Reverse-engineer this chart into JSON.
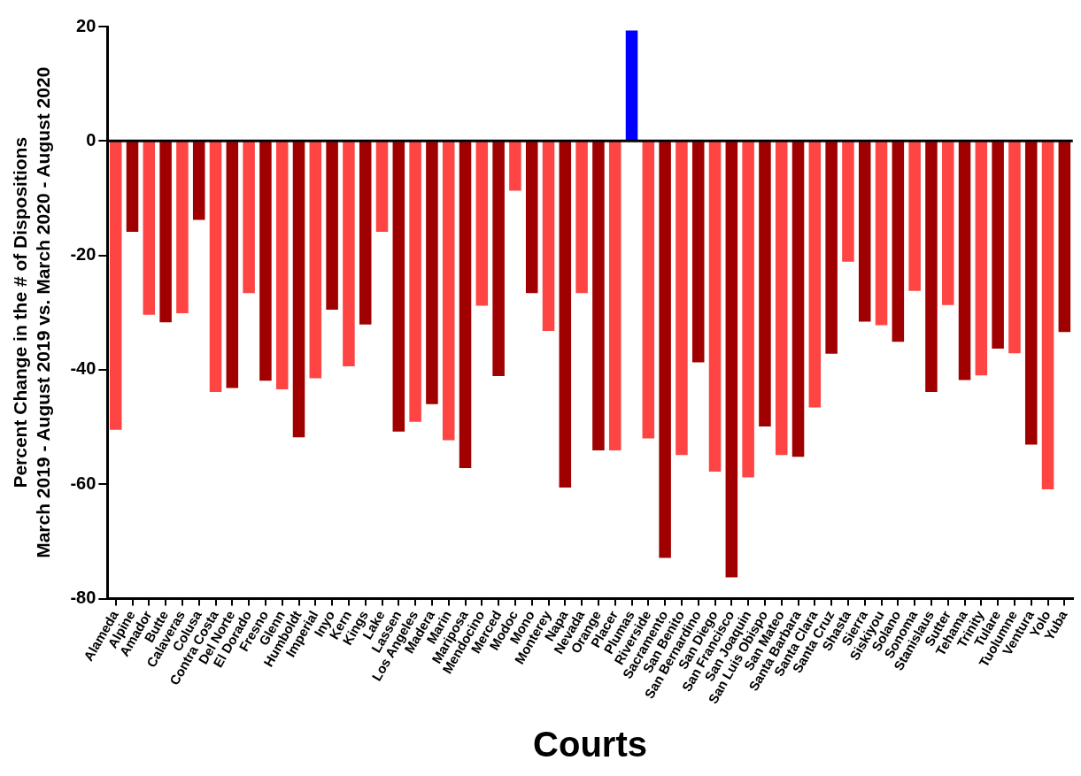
{
  "chart_data": {
    "type": "bar",
    "xlabel": "Courts",
    "ylabel": "Percent Change in the # of Dispositions\nMarch 2019 - August 2019 vs. March 2020 - August 2020",
    "categories": [
      "Alameda",
      "Alpine",
      "Amador",
      "Butte",
      "Calaveras",
      "Colusa",
      "Contra Costa",
      "Del Norte",
      "El Dorado",
      "Fresno",
      "Glenn",
      "Humboldt",
      "Imperial",
      "Inyo",
      "Kern",
      "Kings",
      "Lake",
      "Lassen",
      "Los Angeles",
      "Madera",
      "Marin",
      "Mariposa",
      "Mendocino",
      "Merced",
      "Modoc",
      "Mono",
      "Monterey",
      "Napa",
      "Nevada",
      "Orange",
      "Placer",
      "Plumas",
      "Riverside",
      "Sacramento",
      "San Benito",
      "San Bernardino",
      "San Diego",
      "San Francisco",
      "San Joaquin",
      "San Luis Obispo",
      "San Mateo",
      "Santa Barbara",
      "Santa Clara",
      "Santa Cruz",
      "Shasta",
      "Sierra",
      "Siskiyou",
      "Solano",
      "Sonoma",
      "Stanislaus",
      "Sutter",
      "Tehama",
      "Trinity",
      "Tulare",
      "Tuolumne",
      "Ventura",
      "Yolo",
      "Yuba"
    ],
    "values": [
      -50.5,
      -15.9,
      -30.4,
      -31.7,
      -30.1,
      -13.8,
      -43.9,
      -43.2,
      -26.6,
      -41.9,
      -43.4,
      -51.8,
      -41.5,
      -29.5,
      -39.4,
      -32.1,
      -15.9,
      -50.8,
      -49.1,
      -46.0,
      -52.3,
      -57.2,
      -28.8,
      -41.1,
      -8.7,
      -26.6,
      -33.2,
      -60.6,
      -26.6,
      -54.1,
      -54.1,
      19.3,
      -52.0,
      -72.9,
      -54.9,
      -38.7,
      -57.8,
      -76.3,
      -58.8,
      -49.9,
      -54.9,
      -55.2,
      -46.6,
      -37.2,
      -21.1,
      -31.6,
      -32.2,
      -35.1,
      -26.2,
      -43.9,
      -28.7,
      -41.8,
      -41.0,
      -36.3,
      -37.1,
      -53.1,
      -60.9,
      -33.4
    ],
    "colors": [
      "#ff4444",
      "#a00000",
      "#ff4444",
      "#a00000",
      "#ff4444",
      "#a00000",
      "#ff4444",
      "#a00000",
      "#ff4444",
      "#a00000",
      "#ff4444",
      "#a00000",
      "#ff4444",
      "#a00000",
      "#ff4444",
      "#a00000",
      "#ff4444",
      "#a00000",
      "#ff4444",
      "#a00000",
      "#ff4444",
      "#a00000",
      "#ff4444",
      "#a00000",
      "#ff4444",
      "#a00000",
      "#ff4444",
      "#a00000",
      "#ff4444",
      "#a00000",
      "#ff4444",
      "#0000ff",
      "#ff4444",
      "#a00000",
      "#ff4444",
      "#a00000",
      "#ff4444",
      "#a00000",
      "#ff4444",
      "#a00000",
      "#ff4444",
      "#a00000",
      "#ff4444",
      "#a00000",
      "#ff4444",
      "#a00000",
      "#ff4444",
      "#a00000",
      "#ff4444",
      "#a00000",
      "#ff4444",
      "#a00000",
      "#ff4444",
      "#a00000",
      "#ff4444",
      "#a00000",
      "#ff4444",
      "#a00000"
    ],
    "ylim": [
      -80,
      20
    ],
    "yticks": [
      -80,
      -60,
      -40,
      -20,
      0,
      20
    ],
    "ref_lines": [
      {
        "axis": "y",
        "value": 0,
        "color": "#000000"
      }
    ],
    "grid": false,
    "legend": false
  }
}
